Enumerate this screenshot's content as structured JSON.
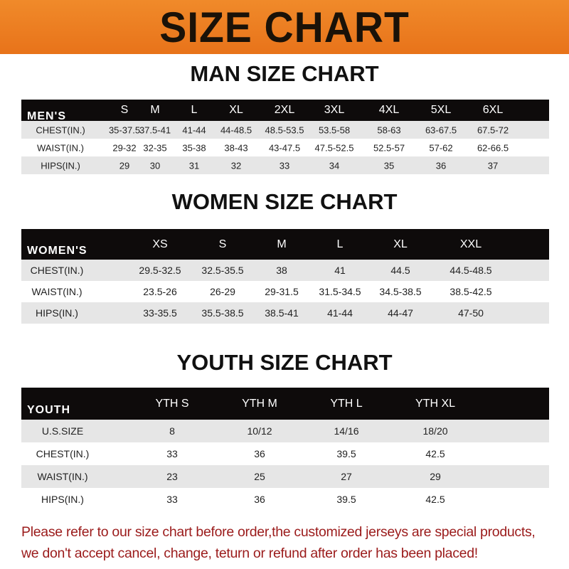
{
  "banner": {
    "title": "SIZE CHART",
    "color": "#ec7f22"
  },
  "men": {
    "title": "MAN SIZE CHART",
    "header": [
      "MEN'S",
      "S",
      "M",
      "L",
      "XL",
      "2XL",
      "3XL",
      "4XL",
      "5XL",
      "6XL"
    ],
    "rows": [
      [
        "CHEST(IN.)",
        "35-37.5",
        "37.5-41",
        "41-44",
        "44-48.5",
        "48.5-53.5",
        "53.5-58",
        "58-63",
        "63-67.5",
        "67.5-72"
      ],
      [
        "WAIST(IN.)",
        "29-32",
        "32-35",
        "35-38",
        "38-43",
        "43-47.5",
        "47.5-52.5",
        "52.5-57",
        "57-62",
        "62-66.5"
      ],
      [
        "HIPS(IN.)",
        "29",
        "30",
        "31",
        "32",
        "33",
        "34",
        "35",
        "36",
        "37"
      ]
    ]
  },
  "women": {
    "title": "WOMEN SIZE CHART",
    "header": [
      "WOMEN'S",
      "XS",
      "S",
      "M",
      "L",
      "XL",
      "XXL"
    ],
    "rows": [
      [
        "CHEST(IN.)",
        "29.5-32.5",
        "32.5-35.5",
        "38",
        "41",
        "44.5",
        "44.5-48.5"
      ],
      [
        "WAIST(IN.)",
        "23.5-26",
        "26-29",
        "29-31.5",
        "31.5-34.5",
        "34.5-38.5",
        "38.5-42.5"
      ],
      [
        "HIPS(IN.)",
        "33-35.5",
        "35.5-38.5",
        "38.5-41",
        "41-44",
        "44-47",
        "47-50"
      ]
    ]
  },
  "youth": {
    "title": "YOUTH SIZE CHART",
    "header": [
      "YOUTH",
      "YTH S",
      "YTH M",
      "YTH L",
      "YTH XL"
    ],
    "rows": [
      [
        "U.S.SIZE",
        "8",
        "10/12",
        "14/16",
        "18/20"
      ],
      [
        "CHEST(IN.)",
        "33",
        "36",
        "39.5",
        "42.5"
      ],
      [
        "WAIST(IN.)",
        "23",
        "25",
        "27",
        "29"
      ],
      [
        "HIPS(IN.)",
        "33",
        "36",
        "39.5",
        "42.5"
      ]
    ]
  },
  "note": {
    "line1": "Please refer to our size chart before order,the customized jerseys are special products,",
    "line2": "we don't accept cancel, change, teturn or refund after order has been placed!",
    "color": "#9b1b1b"
  }
}
